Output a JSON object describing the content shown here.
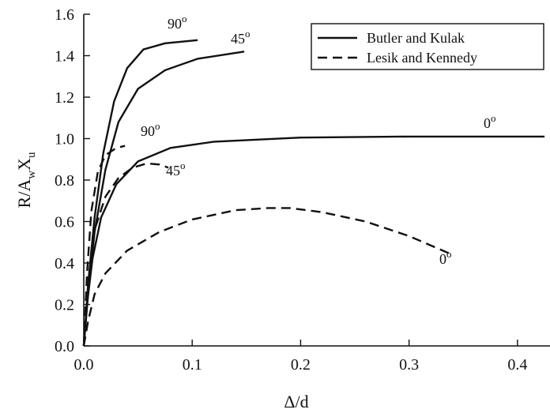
{
  "chart_data": {
    "type": "line",
    "xlabel": "Δ/d",
    "ylabel": {
      "base": "R/A",
      "sub1": "w",
      "mid": "X",
      "sub2": "u"
    },
    "xlim": [
      0,
      0.43
    ],
    "ylim": [
      0,
      1.6
    ],
    "xticks": [
      0.0,
      0.1,
      0.2,
      0.3,
      0.4
    ],
    "xtick_labels": [
      "0.0",
      "0.1",
      "0.2",
      "0.3",
      "0.4"
    ],
    "yticks": [
      0.0,
      0.2,
      0.4,
      0.6,
      0.8,
      1.0,
      1.2,
      1.4,
      1.6
    ],
    "ytick_labels": [
      "0.0",
      "0.2",
      "0.4",
      "0.6",
      "0.8",
      "1.0",
      "1.2",
      "1.4",
      "1.6"
    ],
    "grid": false,
    "legend": {
      "position": "top-right",
      "entries": [
        {
          "label": "Butler and Kulak",
          "style": "solid"
        },
        {
          "label": "Lesik and Kennedy",
          "style": "dashed"
        }
      ]
    },
    "series": [
      {
        "style": "solid",
        "annotation": {
          "text": "90",
          "sup": "o"
        },
        "points": [
          [
            0,
            0
          ],
          [
            0.004,
            0.3
          ],
          [
            0.01,
            0.62
          ],
          [
            0.018,
            0.93
          ],
          [
            0.028,
            1.18
          ],
          [
            0.04,
            1.34
          ],
          [
            0.055,
            1.43
          ],
          [
            0.075,
            1.46
          ],
          [
            0.105,
            1.475
          ]
        ]
      },
      {
        "style": "solid",
        "annotation": {
          "text": "45",
          "sup": "o"
        },
        "points": [
          [
            0,
            0
          ],
          [
            0.004,
            0.25
          ],
          [
            0.01,
            0.55
          ],
          [
            0.02,
            0.85
          ],
          [
            0.032,
            1.08
          ],
          [
            0.05,
            1.24
          ],
          [
            0.075,
            1.33
          ],
          [
            0.105,
            1.385
          ],
          [
            0.148,
            1.42
          ]
        ]
      },
      {
        "style": "solid",
        "annotation": {
          "text": "0",
          "sup": "o"
        },
        "points": [
          [
            0,
            0
          ],
          [
            0.003,
            0.2
          ],
          [
            0.008,
            0.42
          ],
          [
            0.016,
            0.62
          ],
          [
            0.03,
            0.78
          ],
          [
            0.05,
            0.89
          ],
          [
            0.08,
            0.955
          ],
          [
            0.12,
            0.985
          ],
          [
            0.2,
            1.005
          ],
          [
            0.3,
            1.01
          ],
          [
            0.425,
            1.01
          ]
        ]
      },
      {
        "style": "dashed",
        "annotation": {
          "text": "90",
          "sup": "o"
        },
        "points": [
          [
            0,
            0
          ],
          [
            0.003,
            0.35
          ],
          [
            0.007,
            0.65
          ],
          [
            0.013,
            0.84
          ],
          [
            0.02,
            0.92
          ],
          [
            0.03,
            0.955
          ],
          [
            0.038,
            0.965
          ]
        ]
      },
      {
        "style": "dashed",
        "annotation": {
          "text": "45",
          "sup": "o"
        },
        "points": [
          [
            0,
            0
          ],
          [
            0.004,
            0.3
          ],
          [
            0.01,
            0.56
          ],
          [
            0.02,
            0.72
          ],
          [
            0.032,
            0.81
          ],
          [
            0.045,
            0.86
          ],
          [
            0.058,
            0.88
          ],
          [
            0.07,
            0.875
          ],
          [
            0.078,
            0.86
          ]
        ]
      },
      {
        "style": "dashed",
        "annotation": {
          "text": "0",
          "sup": "o"
        },
        "points": [
          [
            0,
            0
          ],
          [
            0.004,
            0.12
          ],
          [
            0.01,
            0.25
          ],
          [
            0.02,
            0.35
          ],
          [
            0.04,
            0.46
          ],
          [
            0.07,
            0.55
          ],
          [
            0.1,
            0.61
          ],
          [
            0.14,
            0.655
          ],
          [
            0.17,
            0.665
          ],
          [
            0.19,
            0.665
          ],
          [
            0.22,
            0.645
          ],
          [
            0.26,
            0.6
          ],
          [
            0.3,
            0.53
          ],
          [
            0.34,
            0.44
          ]
        ]
      }
    ]
  }
}
